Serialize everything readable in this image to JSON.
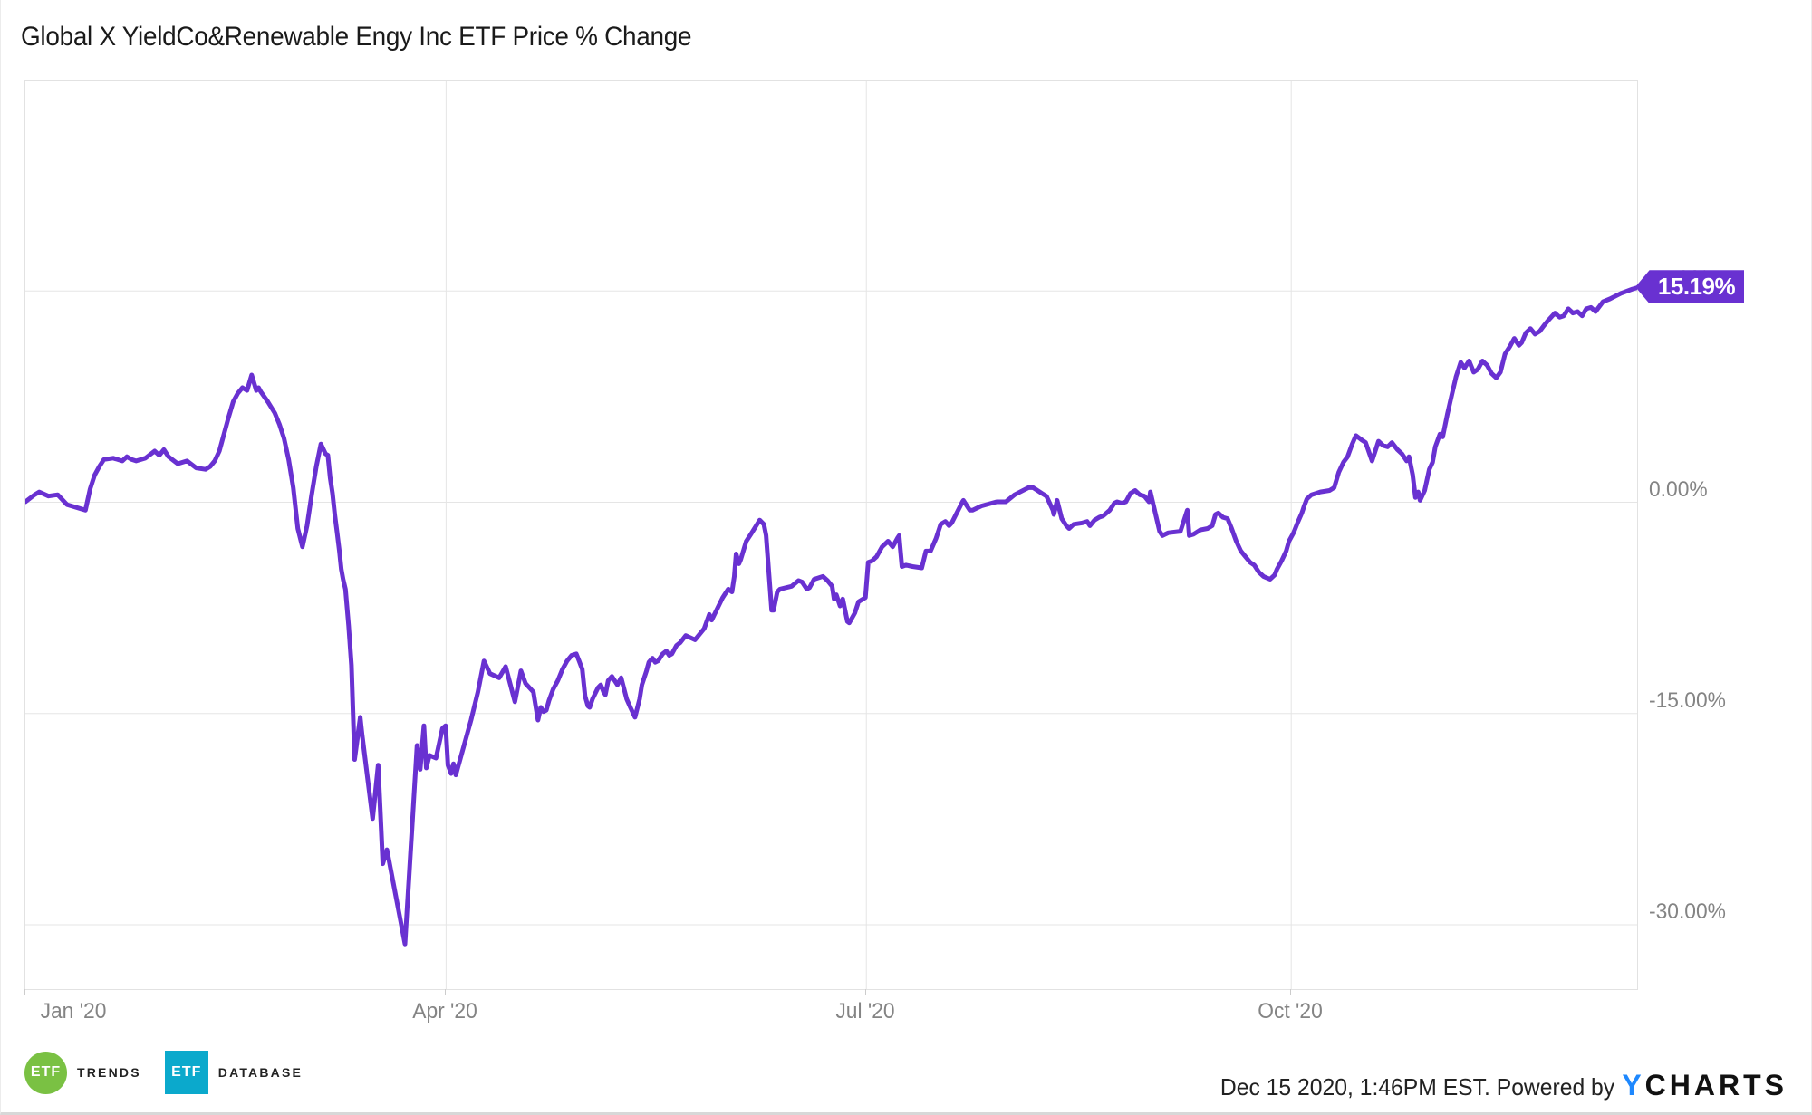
{
  "title": "Global X YieldCo&Renewable Engy Inc ETF Price % Change",
  "chart_data": {
    "type": "line",
    "title": "Global X YieldCo&Renewable Engy Inc ETF Price % Change",
    "series_name": "Global X YieldCo&Renewable Engy Inc ETF Price % Change",
    "x_unit": "days since Jan 1 2020",
    "xlim_days": [
      0,
      349
    ],
    "ylim": [
      -34.6,
      29.9
    ],
    "grid": true,
    "line_color": "#6931d1",
    "gridline_color": "#e5e5e5",
    "axis_label_color": "#848484",
    "last_value_label": "15.19%",
    "last_value_pct": 15.19,
    "badge_color": "#6931d1",
    "x_ticks": [
      {
        "label": "Jan '20",
        "day": 0
      },
      {
        "label": "Apr '20",
        "day": 91
      },
      {
        "label": "Jul '20",
        "day": 182
      },
      {
        "label": "Oct '20",
        "day": 274
      }
    ],
    "y_ticks": [
      {
        "label": "15.00%",
        "value": 15,
        "covered_by_badge": true
      },
      {
        "label": "0.00%",
        "value": 0
      },
      {
        "label": "-15.00%",
        "value": -15
      },
      {
        "label": "-30.00%",
        "value": -30
      }
    ],
    "points": [
      [
        0,
        0
      ],
      [
        2,
        0.5
      ],
      [
        3,
        0.7
      ],
      [
        5,
        0.4
      ],
      [
        7,
        0.5
      ],
      [
        9,
        -0.2
      ],
      [
        12,
        -0.5
      ],
      [
        13,
        -0.6
      ],
      [
        14,
        0.9
      ],
      [
        15,
        1.9
      ],
      [
        16,
        2.5
      ],
      [
        17,
        3
      ],
      [
        19,
        3.1
      ],
      [
        21,
        2.9
      ],
      [
        22,
        3.2
      ],
      [
        23,
        3
      ],
      [
        24,
        2.9
      ],
      [
        26,
        3.1
      ],
      [
        28,
        3.6
      ],
      [
        29,
        3.3
      ],
      [
        30,
        3.7
      ],
      [
        31,
        3.2
      ],
      [
        33,
        2.7
      ],
      [
        35,
        2.9
      ],
      [
        37,
        2.4
      ],
      [
        39,
        2.3
      ],
      [
        40,
        2.5
      ],
      [
        41,
        2.9
      ],
      [
        42,
        3.6
      ],
      [
        43,
        4.8
      ],
      [
        44,
        6
      ],
      [
        45,
        7.1
      ],
      [
        46,
        7.7
      ],
      [
        47,
        8.1
      ],
      [
        48,
        7.9
      ],
      [
        49,
        9
      ],
      [
        50,
        7.9
      ],
      [
        50.5,
        8.1
      ],
      [
        51,
        7.8
      ],
      [
        52.5,
        7.1
      ],
      [
        54,
        6.3
      ],
      [
        55,
        5.5
      ],
      [
        56,
        4.5
      ],
      [
        57,
        3
      ],
      [
        58,
        1
      ],
      [
        59,
        -1.9
      ],
      [
        60,
        -3.2
      ],
      [
        61,
        -1.7
      ],
      [
        62,
        0.5
      ],
      [
        63,
        2.5
      ],
      [
        64,
        4.1
      ],
      [
        65,
        3.4
      ],
      [
        65.5,
        3.3
      ],
      [
        66,
        1.7
      ],
      [
        66.5,
        0.6
      ],
      [
        67,
        -0.9
      ],
      [
        67.5,
        -2.2
      ],
      [
        68,
        -3.5
      ],
      [
        68.4,
        -4.8
      ],
      [
        68.8,
        -5.5
      ],
      [
        69.3,
        -6.2
      ],
      [
        70,
        -8.8
      ],
      [
        70.6,
        -11.6
      ],
      [
        71.3,
        -18.3
      ],
      [
        72.5,
        -15.3
      ],
      [
        72.9,
        -16.5
      ],
      [
        75.2,
        -22.5
      ],
      [
        76.4,
        -18.7
      ],
      [
        77.4,
        -25.7
      ],
      [
        78.3,
        -24.7
      ],
      [
        82.2,
        -31.4
      ],
      [
        84.8,
        -17.3
      ],
      [
        85.5,
        -19
      ],
      [
        86.3,
        -15.9
      ],
      [
        86.8,
        -18.9
      ],
      [
        87.5,
        -18
      ],
      [
        88.9,
        -18.2
      ],
      [
        90.3,
        -16.1
      ],
      [
        91,
        -15.9
      ],
      [
        91.5,
        -18.7
      ],
      [
        92.2,
        -19.3
      ],
      [
        92.7,
        -18.6
      ],
      [
        93.2,
        -19.4
      ],
      [
        95.4,
        -16.8
      ],
      [
        96.5,
        -15.5
      ],
      [
        98,
        -13.5
      ],
      [
        99.3,
        -11.3
      ],
      [
        100.6,
        -12.2
      ],
      [
        102.6,
        -12.5
      ],
      [
        104,
        -11.7
      ],
      [
        106,
        -14.2
      ],
      [
        107.3,
        -12
      ],
      [
        108.3,
        -12.9
      ],
      [
        110,
        -13.5
      ],
      [
        111,
        -15.5
      ],
      [
        111.6,
        -14.6
      ],
      [
        112.2,
        -14.9
      ],
      [
        112.8,
        -14.8
      ],
      [
        113.4,
        -14.1
      ],
      [
        114.3,
        -13.3
      ],
      [
        115.3,
        -12.7
      ],
      [
        116.3,
        -11.9
      ],
      [
        117.3,
        -11.3
      ],
      [
        118.3,
        -10.9
      ],
      [
        119.3,
        -10.8
      ],
      [
        119.9,
        -11.3
      ],
      [
        120.6,
        -11.9
      ],
      [
        121.2,
        -13.8
      ],
      [
        121.8,
        -14.5
      ],
      [
        122.2,
        -14.6
      ],
      [
        122.8,
        -14
      ],
      [
        124,
        -13.2
      ],
      [
        124.6,
        -13
      ],
      [
        125.2,
        -13.5
      ],
      [
        125.6,
        -13.7
      ],
      [
        126.2,
        -12.7
      ],
      [
        127,
        -12.4
      ],
      [
        127.6,
        -12.7
      ],
      [
        128.2,
        -13
      ],
      [
        129,
        -12.5
      ],
      [
        130.2,
        -14
      ],
      [
        131,
        -14.6
      ],
      [
        132,
        -15.3
      ],
      [
        133,
        -14
      ],
      [
        133.5,
        -13
      ],
      [
        134.5,
        -12
      ],
      [
        135,
        -11.4
      ],
      [
        135.8,
        -11.1
      ],
      [
        136.4,
        -11.4
      ],
      [
        137,
        -11.3
      ],
      [
        138,
        -10.8
      ],
      [
        138.8,
        -10.6
      ],
      [
        139.4,
        -10.9
      ],
      [
        140,
        -10.8
      ],
      [
        141,
        -10.2
      ],
      [
        141.8,
        -10
      ],
      [
        143,
        -9.5
      ],
      [
        145,
        -9.8
      ],
      [
        147,
        -9
      ],
      [
        148.1,
        -8
      ],
      [
        148.6,
        -8.4
      ],
      [
        151,
        -6.8
      ],
      [
        152.2,
        -6.2
      ],
      [
        153,
        -6.4
      ],
      [
        153.5,
        -5.3
      ],
      [
        153.9,
        -3.7
      ],
      [
        154.5,
        -4.4
      ],
      [
        154.9,
        -4.1
      ],
      [
        156.1,
        -2.8
      ],
      [
        157.1,
        -2.3
      ],
      [
        159,
        -1.3
      ],
      [
        159.9,
        -1.6
      ],
      [
        160.4,
        -2.4
      ],
      [
        161.6,
        -7.7
      ],
      [
        162,
        -7.7
      ],
      [
        162.8,
        -6.4
      ],
      [
        163.4,
        -6.2
      ],
      [
        164.7,
        -6.1
      ],
      [
        165.9,
        -6
      ],
      [
        167.4,
        -5.6
      ],
      [
        168.2,
        -5.7
      ],
      [
        169.2,
        -6.2
      ],
      [
        169.8,
        -6.1
      ],
      [
        170.8,
        -5.5
      ],
      [
        172.7,
        -5.3
      ],
      [
        173.7,
        -5.6
      ],
      [
        174.7,
        -6
      ],
      [
        175.1,
        -6.9
      ],
      [
        175.6,
        -6.6
      ],
      [
        176.4,
        -7.4
      ],
      [
        177,
        -6.9
      ],
      [
        178,
        -8.5
      ],
      [
        178.4,
        -8.6
      ],
      [
        179.6,
        -7.9
      ],
      [
        180.4,
        -7.1
      ],
      [
        181.9,
        -6.8
      ],
      [
        182.5,
        -4.3
      ],
      [
        183.3,
        -4.2
      ],
      [
        184.3,
        -3.9
      ],
      [
        185.5,
        -3.2
      ],
      [
        186.8,
        -2.8
      ],
      [
        187.8,
        -3.2
      ],
      [
        188.8,
        -2.6
      ],
      [
        189.2,
        -2.4
      ],
      [
        189.4,
        -3.2
      ],
      [
        189.8,
        -4.6
      ],
      [
        190.7,
        -4.5
      ],
      [
        192.1,
        -4.6
      ],
      [
        194.1,
        -4.7
      ],
      [
        195,
        -3.5
      ],
      [
        196,
        -3.5
      ],
      [
        197.2,
        -2.6
      ],
      [
        198.2,
        -1.6
      ],
      [
        199.2,
        -1.4
      ],
      [
        200,
        -1.7
      ],
      [
        200.6,
        -1.5
      ],
      [
        202.9,
        0
      ],
      [
        203.1,
        0.1
      ],
      [
        204.5,
        -0.6
      ],
      [
        205.1,
        -0.6
      ],
      [
        207,
        -0.3
      ],
      [
        210.3,
        0
      ],
      [
        212.3,
        0
      ],
      [
        214.2,
        0.5
      ],
      [
        217.2,
        1
      ],
      [
        218.2,
        1
      ],
      [
        220.1,
        0.6
      ],
      [
        221.1,
        0.4
      ],
      [
        222.5,
        -0.6
      ],
      [
        222.7,
        -0.9
      ],
      [
        223.4,
        0.1
      ],
      [
        224.4,
        -1.2
      ],
      [
        225.4,
        -1.7
      ],
      [
        226,
        -1.9
      ],
      [
        227,
        -1.6
      ],
      [
        228.9,
        -1.5
      ],
      [
        229.9,
        -1.4
      ],
      [
        230.5,
        -1.7
      ],
      [
        231.5,
        -1.3
      ],
      [
        232.5,
        -1.1
      ],
      [
        233.4,
        -1
      ],
      [
        234.8,
        -0.6
      ],
      [
        235.8,
        -0.1
      ],
      [
        236.4,
        0
      ],
      [
        237.4,
        -0.1
      ],
      [
        238.3,
        0
      ],
      [
        239.3,
        0.6
      ],
      [
        240.3,
        0.8
      ],
      [
        241.3,
        0.5
      ],
      [
        242.3,
        0.4
      ],
      [
        243.3,
        0
      ],
      [
        243.6,
        0.7
      ],
      [
        245.6,
        -2.1
      ],
      [
        246.2,
        -2.4
      ],
      [
        247.5,
        -2.2
      ],
      [
        250.1,
        -2.1
      ],
      [
        251.6,
        -0.6
      ],
      [
        252,
        -2.4
      ],
      [
        253,
        -2.3
      ],
      [
        254.4,
        -2
      ],
      [
        256,
        -1.9
      ],
      [
        257,
        -1.7
      ],
      [
        257.7,
        -0.9
      ],
      [
        258.3,
        -0.8
      ],
      [
        259.3,
        -1.1
      ],
      [
        260.3,
        -1.2
      ],
      [
        261.2,
        -1.9
      ],
      [
        262.2,
        -2.8
      ],
      [
        263.2,
        -3.5
      ],
      [
        264.2,
        -3.9
      ],
      [
        265.2,
        -4.3
      ],
      [
        266.1,
        -4.5
      ],
      [
        267.1,
        -5
      ],
      [
        268.1,
        -5.3
      ],
      [
        269.5,
        -5.5
      ],
      [
        270.5,
        -5.2
      ],
      [
        271,
        -4.8
      ],
      [
        272,
        -4.2
      ],
      [
        273,
        -3.5
      ],
      [
        273.6,
        -2.8
      ],
      [
        274.6,
        -2.2
      ],
      [
        275.6,
        -1.4
      ],
      [
        276.4,
        -0.8
      ],
      [
        276.9,
        -0.3
      ],
      [
        277.5,
        0.2
      ],
      [
        278.5,
        0.5
      ],
      [
        279.5,
        0.6
      ],
      [
        280.4,
        0.7
      ],
      [
        282.4,
        0.8
      ],
      [
        283.4,
        1
      ],
      [
        284.4,
        2.1
      ],
      [
        285.4,
        2.8
      ],
      [
        286.3,
        3.2
      ],
      [
        287.3,
        4.1
      ],
      [
        288.1,
        4.7
      ],
      [
        289.3,
        4.4
      ],
      [
        290.2,
        4.2
      ],
      [
        291.6,
        2.9
      ],
      [
        293,
        4.3
      ],
      [
        294,
        4
      ],
      [
        295,
        3.9
      ],
      [
        295.9,
        4.2
      ],
      [
        297.1,
        3.7
      ],
      [
        298.1,
        3.4
      ],
      [
        299.1,
        2.9
      ],
      [
        299.6,
        3.2
      ],
      [
        300.4,
        1.9
      ],
      [
        301,
        0.3
      ],
      [
        301.6,
        0.7
      ],
      [
        302,
        0.1
      ],
      [
        303,
        0.8
      ],
      [
        304,
        2.3
      ],
      [
        304.7,
        2.8
      ],
      [
        305.3,
        3.9
      ],
      [
        306.3,
        4.8
      ],
      [
        306.9,
        4.6
      ],
      [
        307.9,
        6.2
      ],
      [
        308.8,
        7.5
      ],
      [
        309.8,
        8.9
      ],
      [
        310.8,
        9.9
      ],
      [
        311.6,
        9.5
      ],
      [
        312.6,
        10
      ],
      [
        313.6,
        9.2
      ],
      [
        314.5,
        9.4
      ],
      [
        315.5,
        10
      ],
      [
        316.5,
        9.7
      ],
      [
        317.5,
        9.1
      ],
      [
        318.5,
        8.8
      ],
      [
        319.4,
        9.2
      ],
      [
        320.4,
        10.5
      ],
      [
        321.4,
        11
      ],
      [
        322.4,
        11.6
      ],
      [
        323.4,
        11.1
      ],
      [
        324,
        11.3
      ],
      [
        324.9,
        12
      ],
      [
        325.9,
        12.3
      ],
      [
        326.9,
        11.9
      ],
      [
        327.9,
        12.1
      ],
      [
        328.8,
        12.5
      ],
      [
        329.8,
        12.9
      ],
      [
        331.2,
        13.4
      ],
      [
        332.2,
        13.1
      ],
      [
        333.1,
        13.2
      ],
      [
        334.1,
        13.7
      ],
      [
        335.1,
        13.4
      ],
      [
        336.1,
        13.5
      ],
      [
        337.1,
        13.2
      ],
      [
        338,
        13.7
      ],
      [
        339,
        13.8
      ],
      [
        340,
        13.5
      ],
      [
        341.6,
        14.2
      ],
      [
        343.1,
        14.4
      ],
      [
        345.5,
        14.8
      ],
      [
        348,
        15.1
      ],
      [
        349,
        15.19
      ]
    ]
  },
  "footer": {
    "etf_trends": {
      "badge": "ETF",
      "label": "TRENDS",
      "badge_color": "#7ac143"
    },
    "etf_db": {
      "badge": "ETF",
      "label": "DATABASE",
      "badge_color": "#0ba9cc"
    },
    "timestamp": "Dec 15 2020, 1:46PM EST. Powered by",
    "ycharts_y": "Y",
    "ycharts_rest": "CHARTS",
    "ycharts_y_color": "#1e88fe"
  }
}
